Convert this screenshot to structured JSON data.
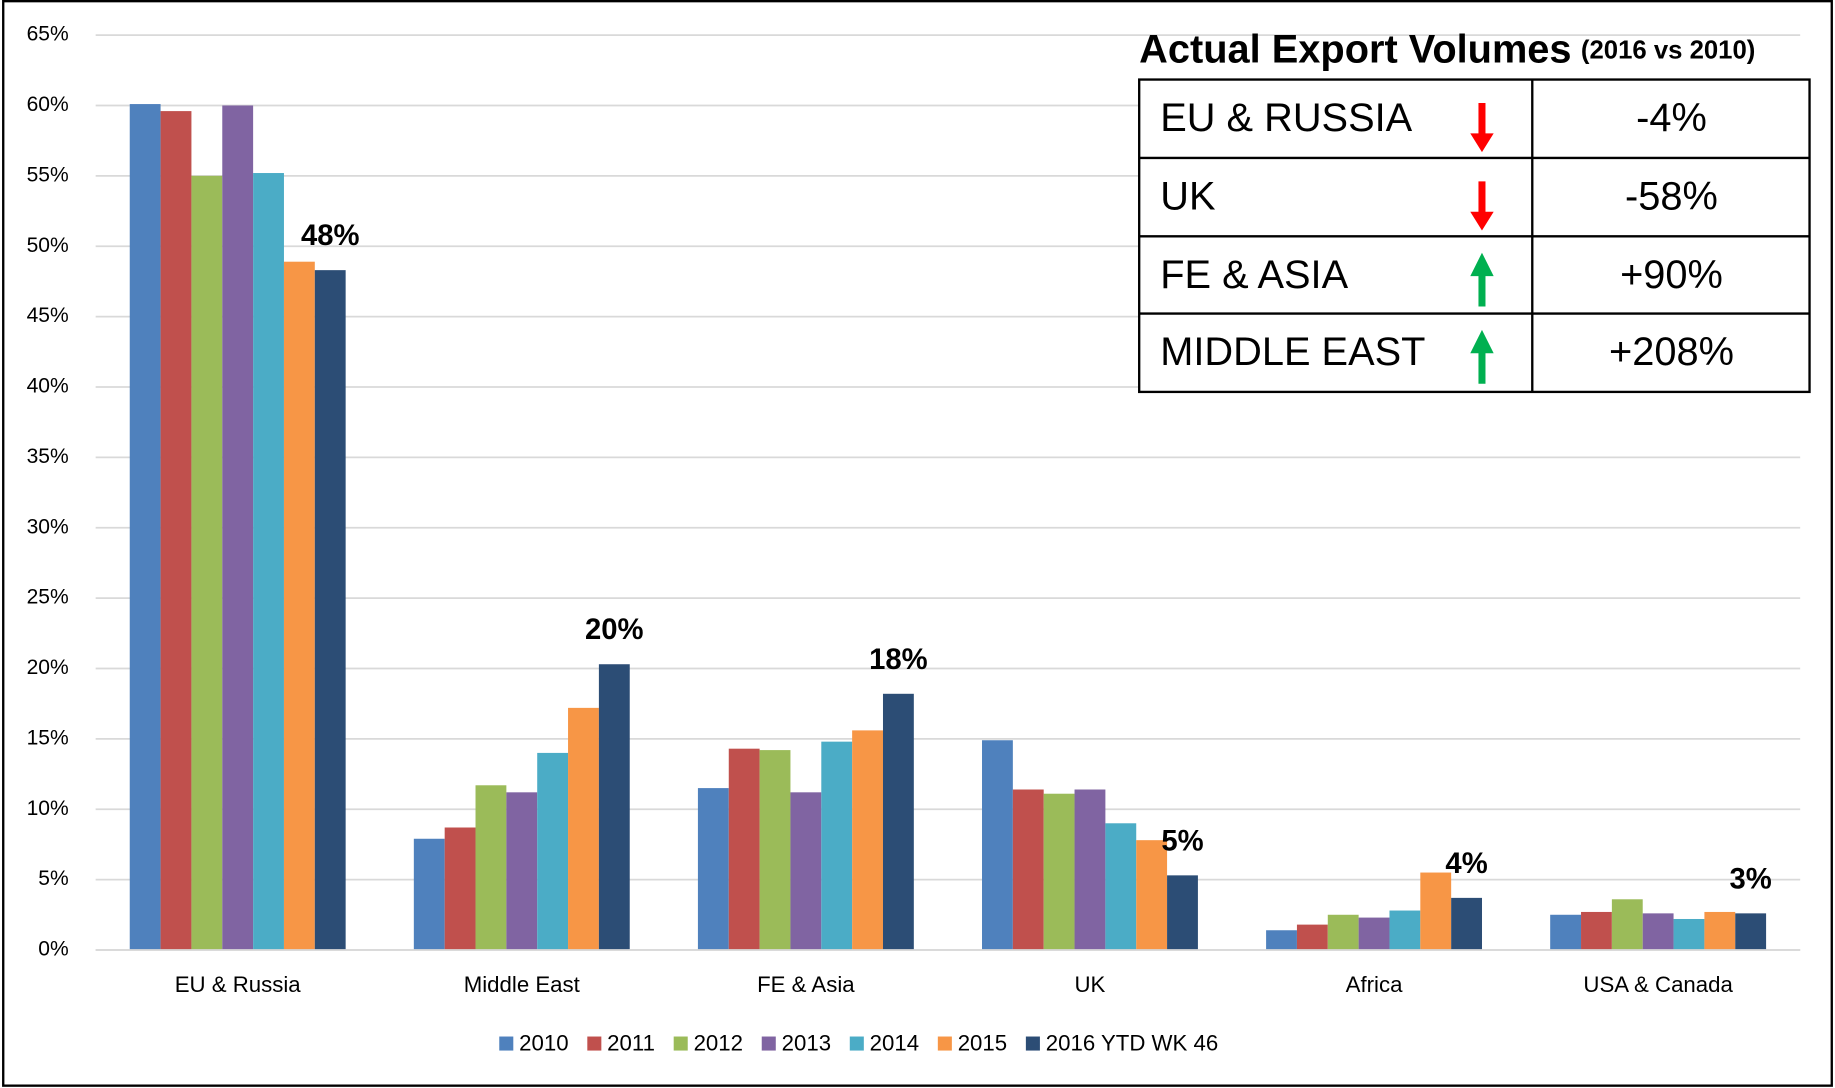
{
  "chart_data": {
    "type": "bar",
    "categories": [
      "EU & Russia",
      "Middle East",
      "FE & Asia",
      "UK",
      "Africa",
      "USA & Canada"
    ],
    "series": [
      {
        "name": "2010",
        "color": "#4f81bd",
        "values": [
          60.1,
          7.9,
          11.5,
          14.9,
          1.4,
          2.5
        ]
      },
      {
        "name": "2011",
        "color": "#c0504d",
        "values": [
          59.6,
          8.7,
          14.3,
          11.4,
          1.8,
          2.7
        ]
      },
      {
        "name": "2012",
        "color": "#9bbb59",
        "values": [
          55.0,
          11.7,
          14.2,
          11.1,
          2.5,
          3.6
        ]
      },
      {
        "name": "2013",
        "color": "#8064a2",
        "values": [
          60.0,
          11.2,
          11.2,
          11.4,
          2.3,
          2.6
        ]
      },
      {
        "name": "2014",
        "color": "#4bacc6",
        "values": [
          55.2,
          14.0,
          14.8,
          9.0,
          2.8,
          2.2
        ]
      },
      {
        "name": "2015",
        "color": "#f79646",
        "values": [
          48.9,
          17.2,
          15.6,
          7.8,
          5.5,
          2.7
        ]
      },
      {
        "name": "2016 YTD WK 46",
        "color": "#2c4d75",
        "values": [
          48.3,
          20.3,
          18.2,
          5.3,
          3.7,
          2.6
        ],
        "value_labels": [
          "48%",
          "20%",
          "18%",
          "5%",
          "4%",
          "3%"
        ]
      }
    ],
    "ylim": [
      0,
      65
    ],
    "yticks": [
      {
        "value": 0,
        "label": "0%"
      },
      {
        "value": 5,
        "label": "5%"
      },
      {
        "value": 10,
        "label": "10%"
      },
      {
        "value": 15,
        "label": "15%"
      },
      {
        "value": 20,
        "label": "20%"
      },
      {
        "value": 25,
        "label": "25%"
      },
      {
        "value": 30,
        "label": "30%"
      },
      {
        "value": 35,
        "label": "35%"
      },
      {
        "value": 40,
        "label": "40%"
      },
      {
        "value": 45,
        "label": "45%"
      },
      {
        "value": 50,
        "label": "50%"
      },
      {
        "value": 55,
        "label": "55%"
      },
      {
        "value": 60,
        "label": "60%"
      },
      {
        "value": 65,
        "label": "65%"
      }
    ],
    "grid": true,
    "legend": "bottom",
    "inset_table": {
      "title": "Actual Export Volumes",
      "subtitle": "(2016 vs 2010)",
      "rows": [
        [
          "EU & RUSSIA",
          "-4%"
        ],
        [
          "UK",
          "-58%"
        ],
        [
          "FE & ASIA",
          "+90%"
        ],
        [
          "MIDDLE EAST",
          "+208%"
        ]
      ]
    }
  }
}
